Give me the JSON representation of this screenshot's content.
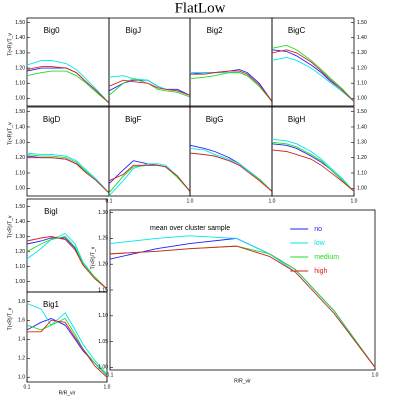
{
  "title": "FlatLow",
  "chart_data": [
    {
      "type": "line",
      "title": "Big0",
      "xscale": "log",
      "xlim": [
        0.1,
        1.0
      ],
      "ylim": [
        0.95,
        1.53
      ],
      "ytick_side": "left",
      "ylabel": "T(<R)/T_v",
      "yticks": [
        {
          "value": 1,
          "label": "1.00"
        },
        {
          "value": 1.1,
          "label": "1.10"
        },
        {
          "value": 1.2,
          "label": "1.20"
        },
        {
          "value": 1.3,
          "label": "1.30"
        },
        {
          "value": 1.4,
          "label": "1.40"
        },
        {
          "value": 1.5,
          "label": "1.50"
        }
      ],
      "x": [
        0.1,
        0.15,
        0.2,
        0.3,
        0.4,
        0.5,
        0.7,
        1.0
      ],
      "series": [
        {
          "color": "#2020ff",
          "values": [
            1.18,
            1.2,
            1.2,
            1.2,
            1.17,
            1.12,
            1.05,
            0.97
          ]
        },
        {
          "color": "#00e5ee",
          "values": [
            1.22,
            1.25,
            1.25,
            1.23,
            1.19,
            1.14,
            1.06,
            0.97
          ]
        },
        {
          "color": "#22dd22",
          "values": [
            1.15,
            1.17,
            1.18,
            1.18,
            1.15,
            1.11,
            1.04,
            0.97
          ]
        },
        {
          "color": "#dd2222",
          "values": [
            1.19,
            1.21,
            1.21,
            1.2,
            1.17,
            1.12,
            1.05,
            0.97
          ]
        }
      ]
    },
    {
      "type": "line",
      "title": "BigJ",
      "xscale": "log",
      "xlim": [
        0.1,
        1.0
      ],
      "ylim": [
        0.95,
        1.53
      ],
      "x": [
        0.1,
        0.15,
        0.2,
        0.3,
        0.4,
        0.5,
        0.7,
        1.0
      ],
      "series": [
        {
          "color": "#2020ff",
          "values": [
            1.05,
            1.1,
            1.12,
            1.12,
            1.08,
            1.06,
            1.06,
            1.02
          ]
        },
        {
          "color": "#00e5ee",
          "values": [
            1.14,
            1.15,
            1.13,
            1.12,
            1.08,
            1.06,
            1.05,
            1.02
          ]
        },
        {
          "color": "#22dd22",
          "values": [
            1.02,
            1.1,
            1.13,
            1.1,
            1.06,
            1.05,
            1.04,
            1.01
          ]
        },
        {
          "color": "#dd2222",
          "values": [
            1.08,
            1.12,
            1.11,
            1.1,
            1.07,
            1.06,
            1.05,
            1.02
          ]
        }
      ]
    },
    {
      "type": "line",
      "title": "Big2",
      "xscale": "log",
      "xlim": [
        0.1,
        1.0
      ],
      "ylim": [
        0.95,
        1.53
      ],
      "x": [
        0.1,
        0.15,
        0.2,
        0.3,
        0.4,
        0.5,
        0.7,
        1.0
      ],
      "series": [
        {
          "color": "#2020ff",
          "values": [
            1.16,
            1.17,
            1.17,
            1.18,
            1.19,
            1.17,
            1.1,
            0.98
          ]
        },
        {
          "color": "#00e5ee",
          "values": [
            1.17,
            1.17,
            1.17,
            1.17,
            1.17,
            1.15,
            1.08,
            0.98
          ]
        },
        {
          "color": "#22dd22",
          "values": [
            1.13,
            1.14,
            1.15,
            1.17,
            1.17,
            1.15,
            1.08,
            0.98
          ]
        },
        {
          "color": "#dd2222",
          "values": [
            1.16,
            1.16,
            1.17,
            1.18,
            1.18,
            1.16,
            1.09,
            0.98
          ]
        }
      ]
    },
    {
      "type": "line",
      "title": "BigC",
      "xscale": "log",
      "xlim": [
        0.1,
        1.0
      ],
      "ylim": [
        0.95,
        1.53
      ],
      "ytick_side": "right",
      "yticks": [
        {
          "value": 1,
          "label": "1.00"
        },
        {
          "value": 1.1,
          "label": "1.10"
        },
        {
          "value": 1.2,
          "label": "1.20"
        },
        {
          "value": 1.3,
          "label": "1.30"
        },
        {
          "value": 1.4,
          "label": "1.40"
        },
        {
          "value": 1.5,
          "label": "1.50"
        }
      ],
      "x": [
        0.1,
        0.15,
        0.2,
        0.3,
        0.4,
        0.5,
        0.7,
        1.0
      ],
      "series": [
        {
          "color": "#2020ff",
          "values": [
            1.32,
            1.31,
            1.28,
            1.22,
            1.17,
            1.12,
            1.06,
            0.98
          ]
        },
        {
          "color": "#00e5ee",
          "values": [
            1.25,
            1.27,
            1.25,
            1.2,
            1.15,
            1.11,
            1.05,
            0.98
          ]
        },
        {
          "color": "#22dd22",
          "values": [
            1.33,
            1.35,
            1.32,
            1.25,
            1.19,
            1.14,
            1.07,
            0.98
          ]
        },
        {
          "color": "#dd2222",
          "values": [
            1.3,
            1.32,
            1.3,
            1.24,
            1.18,
            1.13,
            1.06,
            0.98
          ]
        }
      ]
    },
    {
      "type": "line",
      "title": "BigD",
      "xscale": "log",
      "xlim": [
        0.1,
        1.0
      ],
      "ylim": [
        0.95,
        1.53
      ],
      "ytick_side": "left",
      "ylabel": "T(<R)/T_v",
      "yticks": [
        {
          "value": 1,
          "label": "1.00"
        },
        {
          "value": 1.1,
          "label": "1.10"
        },
        {
          "value": 1.2,
          "label": "1.20"
        },
        {
          "value": 1.3,
          "label": "1.30"
        },
        {
          "value": 1.4,
          "label": "1.40"
        },
        {
          "value": 1.5,
          "label": "1.50"
        }
      ],
      "x": [
        0.1,
        0.15,
        0.2,
        0.3,
        0.4,
        0.5,
        0.7,
        1.0
      ],
      "series": [
        {
          "color": "#2020ff",
          "values": [
            1.21,
            1.2,
            1.2,
            1.19,
            1.16,
            1.12,
            1.05,
            0.97
          ]
        },
        {
          "color": "#00e5ee",
          "values": [
            1.23,
            1.22,
            1.22,
            1.21,
            1.18,
            1.13,
            1.06,
            0.97
          ]
        },
        {
          "color": "#22dd22",
          "values": [
            1.22,
            1.21,
            1.21,
            1.2,
            1.17,
            1.12,
            1.05,
            0.97
          ]
        },
        {
          "color": "#dd2222",
          "values": [
            1.2,
            1.2,
            1.2,
            1.19,
            1.16,
            1.11,
            1.05,
            0.97
          ]
        }
      ]
    },
    {
      "type": "line",
      "title": "BigF",
      "xscale": "log",
      "xlim": [
        0.1,
        1.0
      ],
      "ylim": [
        0.95,
        1.53
      ],
      "xticks": [
        0.1,
        {
          "value": 1,
          "label": "1.0"
        }
      ],
      "x": [
        0.1,
        0.15,
        0.2,
        0.3,
        0.4,
        0.5,
        0.7,
        1.0
      ],
      "series": [
        {
          "color": "#2020ff",
          "values": [
            1.03,
            1.12,
            1.18,
            1.16,
            1.15,
            1.14,
            1.08,
            0.98
          ]
        },
        {
          "color": "#00e5ee",
          "values": [
            0.95,
            1.05,
            1.13,
            1.16,
            1.16,
            1.15,
            1.08,
            0.98
          ]
        },
        {
          "color": "#22dd22",
          "values": [
            0.97,
            1.08,
            1.14,
            1.15,
            1.15,
            1.14,
            1.07,
            0.98
          ]
        },
        {
          "color": "#dd2222",
          "values": [
            1.05,
            1.09,
            1.15,
            1.15,
            1.15,
            1.14,
            1.08,
            0.98
          ]
        }
      ]
    },
    {
      "type": "line",
      "title": "BigG",
      "xscale": "log",
      "xlim": [
        0.1,
        1.0
      ],
      "ylim": [
        0.95,
        1.53
      ],
      "xticks": [
        {
          "value": 1,
          "label": "1.0"
        }
      ],
      "x": [
        0.1,
        0.15,
        0.2,
        0.3,
        0.4,
        0.5,
        0.7,
        1.0
      ],
      "series": [
        {
          "color": "#2020ff",
          "values": [
            1.28,
            1.26,
            1.24,
            1.2,
            1.16,
            1.12,
            1.06,
            0.98
          ]
        },
        {
          "color": "#00e5ee",
          "values": [
            1.26,
            1.25,
            1.22,
            1.19,
            1.16,
            1.12,
            1.06,
            0.98
          ]
        },
        {
          "color": "#22dd22",
          "values": [
            1.23,
            1.22,
            1.21,
            1.18,
            1.15,
            1.11,
            1.06,
            0.98
          ]
        },
        {
          "color": "#dd2222",
          "values": [
            1.23,
            1.22,
            1.21,
            1.18,
            1.15,
            1.11,
            1.05,
            0.98
          ]
        }
      ]
    },
    {
      "type": "line",
      "title": "BigH",
      "xscale": "log",
      "xlim": [
        0.1,
        1.0
      ],
      "ylim": [
        0.95,
        1.53
      ],
      "ytick_side": "right",
      "yticks": [
        {
          "value": 1,
          "label": "1.00"
        },
        {
          "value": 1.1,
          "label": "1.10"
        },
        {
          "value": 1.2,
          "label": "1.20"
        },
        {
          "value": 1.3,
          "label": "1.30"
        },
        {
          "value": 1.4,
          "label": "1.40"
        },
        {
          "value": 1.5,
          "label": "1.50"
        }
      ],
      "xticks": [
        {
          "value": 1,
          "label": "1.0"
        }
      ],
      "x": [
        0.1,
        0.15,
        0.2,
        0.3,
        0.4,
        0.5,
        0.7,
        1.0
      ],
      "series": [
        {
          "color": "#2020ff",
          "values": [
            1.29,
            1.28,
            1.26,
            1.21,
            1.17,
            1.13,
            1.06,
            0.98
          ]
        },
        {
          "color": "#00e5ee",
          "values": [
            1.32,
            1.31,
            1.29,
            1.24,
            1.19,
            1.14,
            1.07,
            0.98
          ]
        },
        {
          "color": "#22dd22",
          "values": [
            1.3,
            1.29,
            1.27,
            1.22,
            1.18,
            1.13,
            1.06,
            0.98
          ]
        },
        {
          "color": "#dd2222",
          "values": [
            1.25,
            1.24,
            1.22,
            1.19,
            1.15,
            1.11,
            1.05,
            0.98
          ]
        }
      ]
    },
    {
      "type": "line",
      "title": "BigI",
      "xscale": "log",
      "xlim": [
        0.1,
        1.0
      ],
      "ylim": [
        0.93,
        1.55
      ],
      "ytick_side": "left",
      "ylabel": "T(<R)/T_v",
      "yticks": [
        {
          "value": 1,
          "label": "1.00"
        },
        {
          "value": 1.1,
          "label": "1.10"
        },
        {
          "value": 1.2,
          "label": "1.20"
        },
        {
          "value": 1.3,
          "label": "1.30"
        },
        {
          "value": 1.4,
          "label": "1.40"
        },
        {
          "value": 1.5,
          "label": "1.50"
        }
      ],
      "x": [
        0.1,
        0.15,
        0.2,
        0.3,
        0.4,
        0.5,
        0.7,
        1.0
      ],
      "series": [
        {
          "color": "#2020ff",
          "values": [
            1.25,
            1.27,
            1.29,
            1.29,
            1.22,
            1.12,
            1.03,
            0.95
          ]
        },
        {
          "color": "#00e5ee",
          "values": [
            1.15,
            1.22,
            1.28,
            1.32,
            1.25,
            1.13,
            1.03,
            0.95
          ]
        },
        {
          "color": "#22dd22",
          "values": [
            1.2,
            1.25,
            1.28,
            1.3,
            1.23,
            1.12,
            1.03,
            0.95
          ]
        },
        {
          "color": "#dd2222",
          "values": [
            1.27,
            1.29,
            1.3,
            1.28,
            1.21,
            1.11,
            1.02,
            0.95
          ]
        }
      ]
    },
    {
      "type": "line",
      "title": "Big1",
      "xscale": "log",
      "xlim": [
        0.1,
        1.0
      ],
      "ylim": [
        0.95,
        1.9
      ],
      "ytick_side": "left",
      "ylabel": "T(<R)/T_v",
      "xlabel": "R/R_vir",
      "yticks": [
        {
          "value": 1,
          "label": "1.0"
        },
        1.2,
        1.4,
        1.6,
        1.8
      ],
      "xticks": [
        0.1,
        {
          "value": 1,
          "label": "1.0"
        }
      ],
      "x": [
        0.1,
        0.15,
        0.2,
        0.3,
        0.4,
        0.5,
        0.7,
        1.0
      ],
      "series": [
        {
          "color": "#2020ff",
          "values": [
            1.5,
            1.58,
            1.62,
            1.55,
            1.4,
            1.28,
            1.15,
            1.02
          ]
        },
        {
          "color": "#00e5ee",
          "values": [
            1.78,
            1.72,
            1.55,
            1.68,
            1.5,
            1.35,
            1.18,
            1.03
          ]
        },
        {
          "color": "#22dd22",
          "values": [
            1.55,
            1.5,
            1.55,
            1.62,
            1.45,
            1.3,
            1.15,
            1.02
          ]
        },
        {
          "color": "#dd2222",
          "values": [
            1.48,
            1.48,
            1.6,
            1.58,
            1.42,
            1.3,
            1.12,
            1.0
          ]
        }
      ]
    },
    {
      "type": "line",
      "annotation": "mean over cluster sample",
      "xscale": "log",
      "xlim": [
        0.1,
        1.0
      ],
      "ylim": [
        0.995,
        1.305
      ],
      "ytick_side": "left",
      "ylabel": "T(<R)/T_v",
      "xlabel": "R/R_vir",
      "yticks": [
        {
          "value": 1,
          "label": "1.00"
        },
        1.05,
        {
          "value": 1.1,
          "label": "1.10"
        },
        1.15,
        {
          "value": 1.2,
          "label": "1.20"
        },
        1.25,
        {
          "value": 1.3,
          "label": "1.30"
        }
      ],
      "xticks": [
        0.1,
        {
          "value": 1,
          "label": "1.0"
        }
      ],
      "x": [
        0.1,
        0.15,
        0.2,
        0.3,
        0.4,
        0.5,
        0.7,
        1.0
      ],
      "series": [
        {
          "name": "no",
          "color": "#2020ff",
          "values": [
            1.21,
            1.23,
            1.24,
            1.25,
            1.22,
            1.19,
            1.11,
            1.0
          ]
        },
        {
          "name": "low",
          "color": "#00e5ee",
          "values": [
            1.24,
            1.25,
            1.255,
            1.25,
            1.22,
            1.185,
            1.105,
            1.0
          ]
        },
        {
          "name": "medium",
          "color": "#22dd22",
          "values": [
            1.22,
            1.225,
            1.23,
            1.235,
            1.22,
            1.19,
            1.11,
            1.0
          ]
        },
        {
          "name": "high",
          "color": "#dd2222",
          "values": [
            1.22,
            1.225,
            1.23,
            1.235,
            1.215,
            1.185,
            1.105,
            1.0
          ]
        }
      ]
    }
  ]
}
